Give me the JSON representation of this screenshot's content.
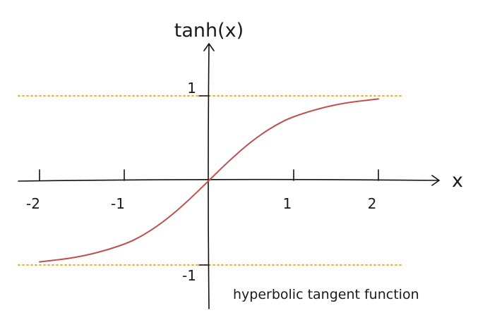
{
  "chart_data": {
    "type": "line",
    "title": "",
    "xlabel": "x",
    "ylabel": "tanh(x)",
    "annotation": "hyperbolic tangent function",
    "xlim": [
      -2,
      2
    ],
    "ylim": [
      -1,
      1
    ],
    "x_ticks": [
      {
        "value": -2,
        "label": "-2"
      },
      {
        "value": -1,
        "label": "-1"
      },
      {
        "value": 1,
        "label": "1"
      },
      {
        "value": 2,
        "label": "2"
      }
    ],
    "y_ticks": [
      {
        "value": 1,
        "label": "1"
      },
      {
        "value": -1,
        "label": "-1"
      }
    ],
    "series": [
      {
        "x": [
          -2,
          -1.5,
          -1,
          -0.75,
          -0.5,
          -0.25,
          0,
          0.25,
          0.5,
          0.75,
          1,
          1.5,
          2
        ],
        "y": [
          -0.964,
          -0.905,
          -0.762,
          -0.635,
          -0.462,
          -0.245,
          0,
          0.245,
          0.462,
          0.635,
          0.762,
          0.905,
          0.964
        ]
      }
    ],
    "asymptotes": [
      1,
      -1
    ],
    "grid": false,
    "colors": {
      "curve": "#c0504d",
      "asymptote": "#e1b832",
      "axis": "#111111"
    }
  }
}
